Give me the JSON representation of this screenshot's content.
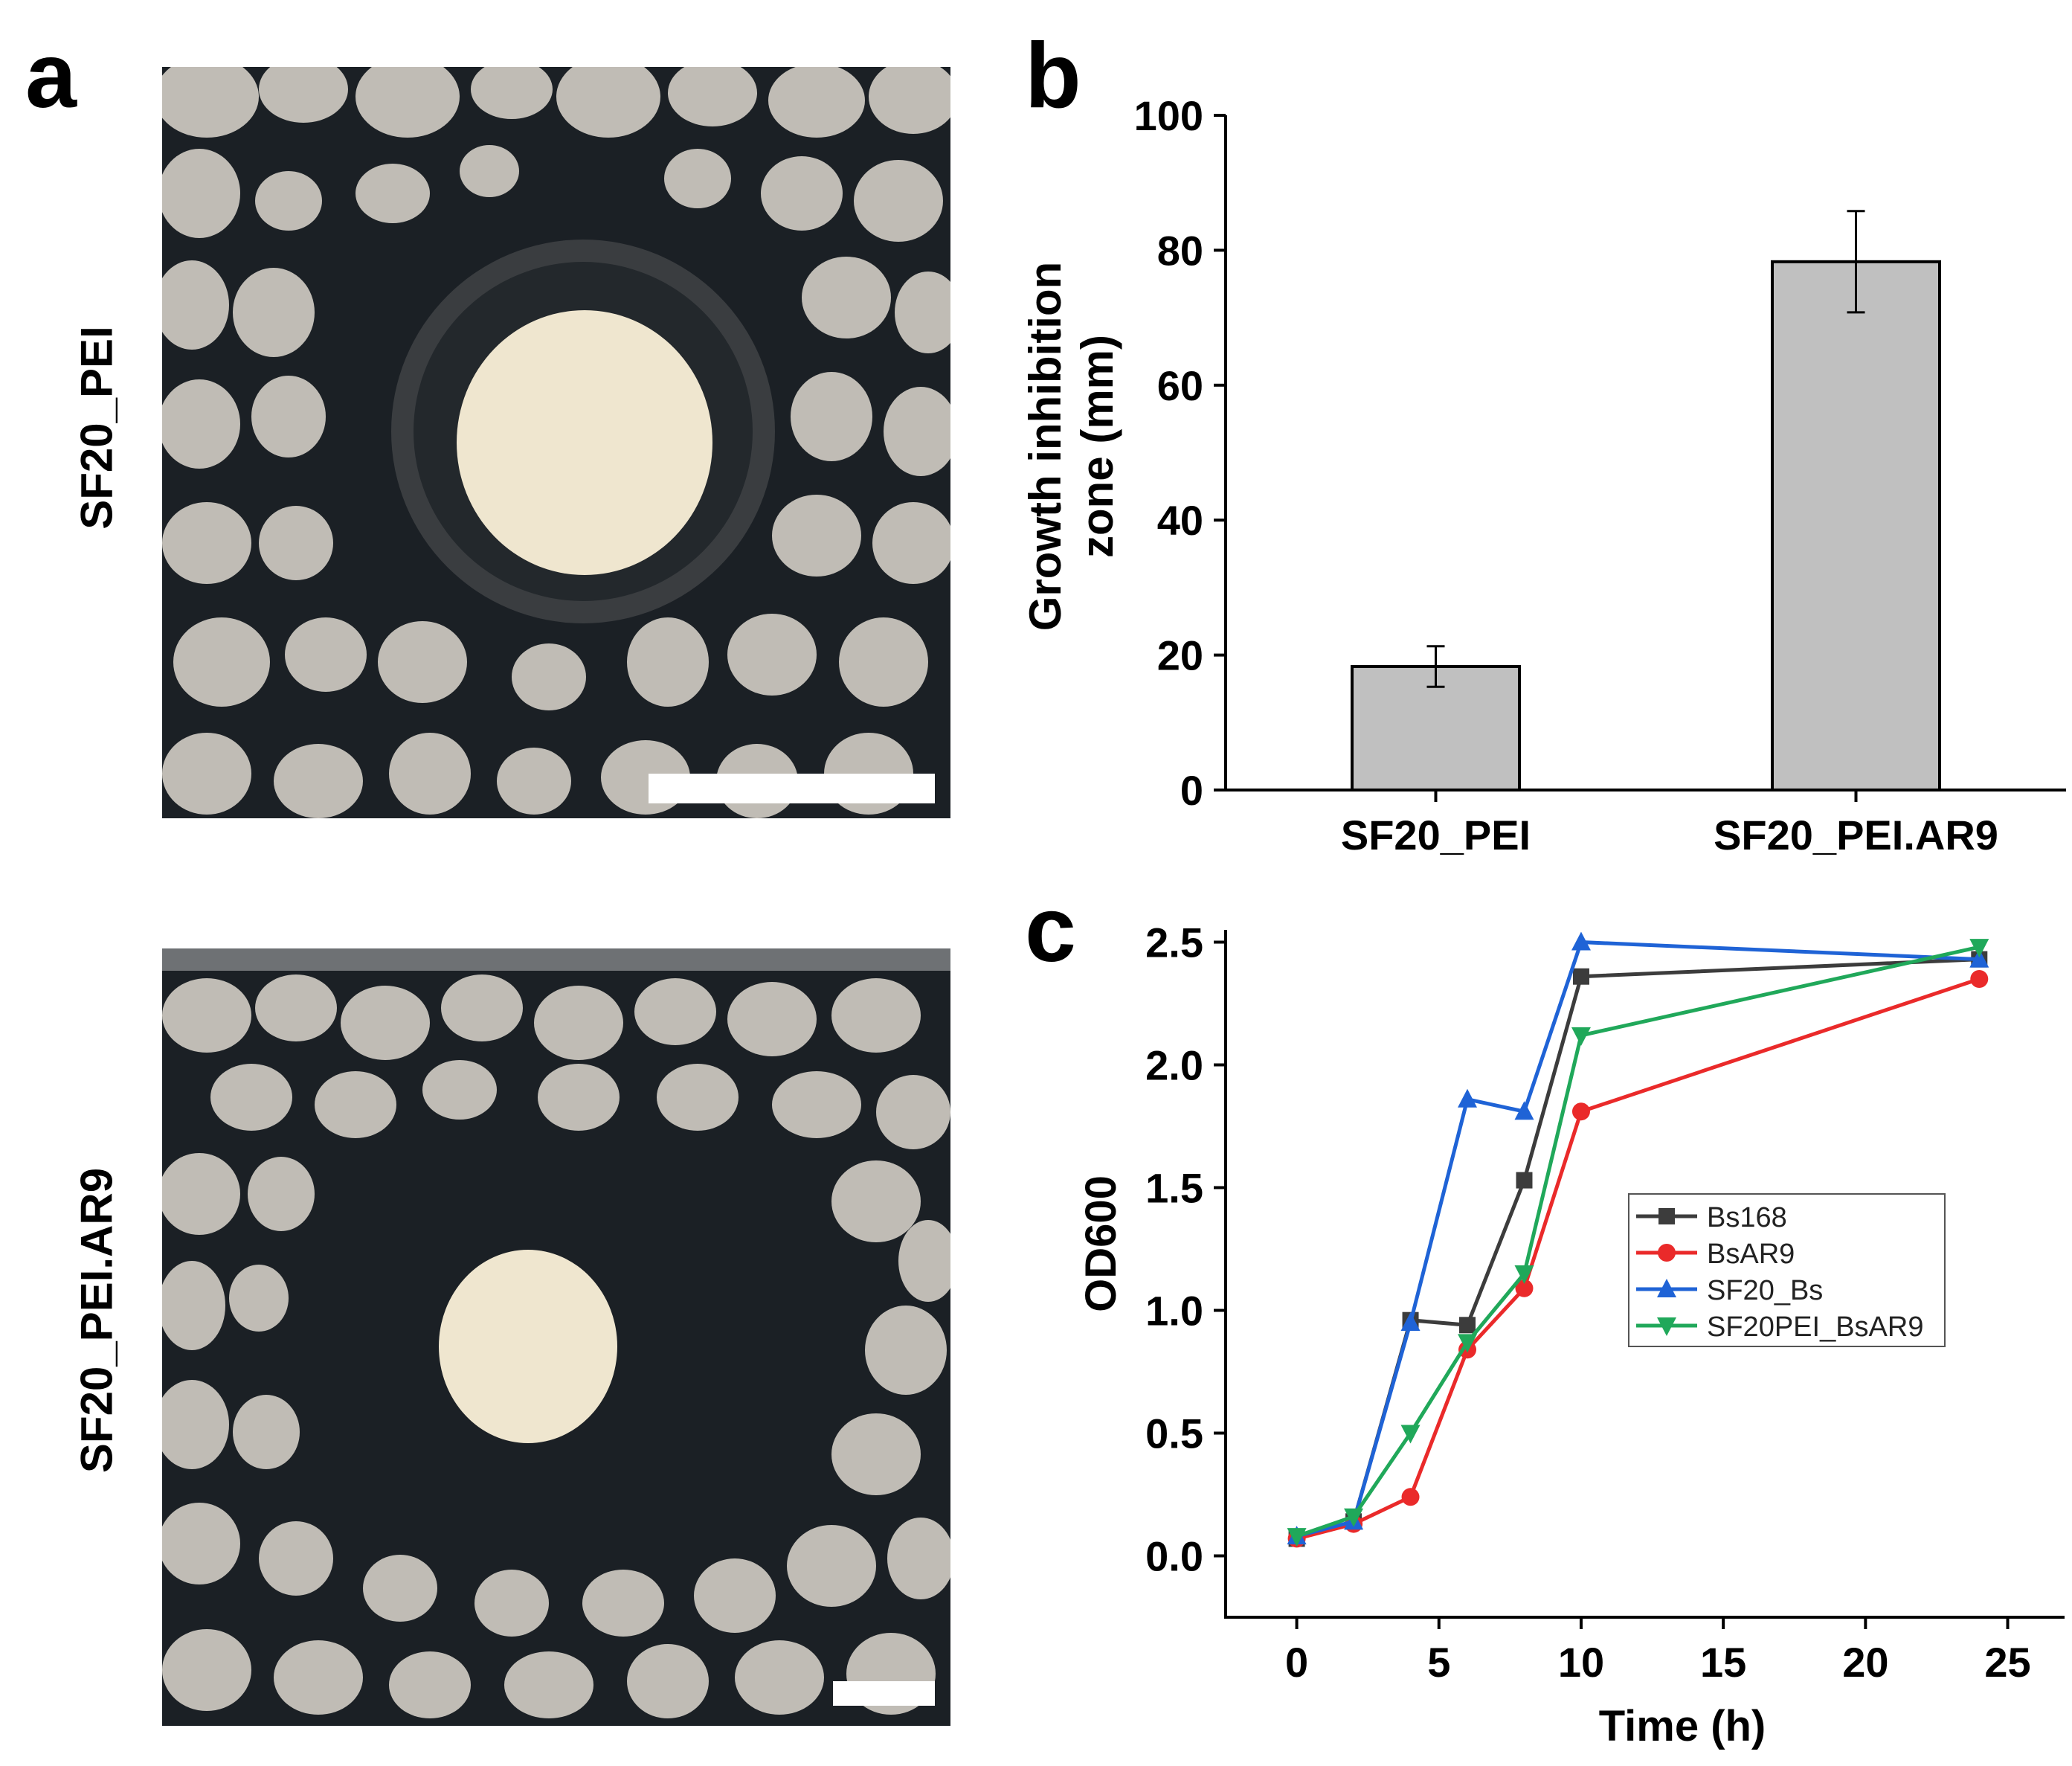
{
  "panel_labels": {
    "a": "a",
    "b": "b",
    "c": "c"
  },
  "photos": [
    {
      "row_label": "SF20_PEI"
    },
    {
      "row_label": "SF20_PEI.AR9"
    }
  ],
  "colors": {
    "bar_fill": "#c0c0c0",
    "agar": "#1b2025",
    "colony": "#cfcbc3",
    "disc": "#efe6cf"
  },
  "chart_data": [
    {
      "type": "bar",
      "categories": [
        "SF20_PEI",
        "SF20_PEI.AR9"
      ],
      "values": [
        18.3,
        78.3
      ],
      "errors": [
        3.0,
        7.5
      ],
      "ylabel": "Growth inhibition\nzone (mm)",
      "ylabel_lines": [
        "Growth inhibition",
        "zone (mm)"
      ],
      "ylim": [
        0,
        100
      ],
      "yticks": [
        "0",
        "20",
        "40",
        "60",
        "80",
        "100"
      ],
      "xlabel": ""
    },
    {
      "type": "line",
      "xlabel": "Time (h)",
      "ylabel": "OD600",
      "xlim": [
        -2.5,
        27
      ],
      "ylim": [
        -0.25,
        2.55
      ],
      "xticks": [
        "0",
        "5",
        "10",
        "15",
        "20",
        "25"
      ],
      "yticks": [
        "0.0",
        "0.5",
        "1.0",
        "1.5",
        "2.0",
        "2.5"
      ],
      "legend_position": "center-right",
      "series": [
        {
          "name": "Bs168",
          "color": "#3c3c3c",
          "marker": "square",
          "x": [
            0,
            2,
            4,
            6,
            8,
            10,
            24
          ],
          "y": [
            0.07,
            0.14,
            0.96,
            0.94,
            1.53,
            2.36,
            2.43
          ]
        },
        {
          "name": "BsAR9",
          "color": "#ea2a2a",
          "marker": "circle",
          "x": [
            0,
            2,
            4,
            6,
            8,
            10,
            24
          ],
          "y": [
            0.07,
            0.13,
            0.24,
            0.84,
            1.09,
            1.81,
            2.35
          ]
        },
        {
          "name": "SF20_Bs",
          "color": "#1f63d6",
          "marker": "triangle-up",
          "x": [
            0,
            2,
            4,
            6,
            8,
            10,
            24
          ],
          "y": [
            0.08,
            0.14,
            0.95,
            1.86,
            1.81,
            2.5,
            2.43
          ]
        },
        {
          "name": "SF20PEI_BsAR9",
          "color": "#20a85a",
          "marker": "triangle-down",
          "x": [
            0,
            2,
            4,
            6,
            8,
            10,
            24
          ],
          "y": [
            0.08,
            0.16,
            0.5,
            0.87,
            1.15,
            2.12,
            2.48
          ]
        }
      ]
    }
  ]
}
